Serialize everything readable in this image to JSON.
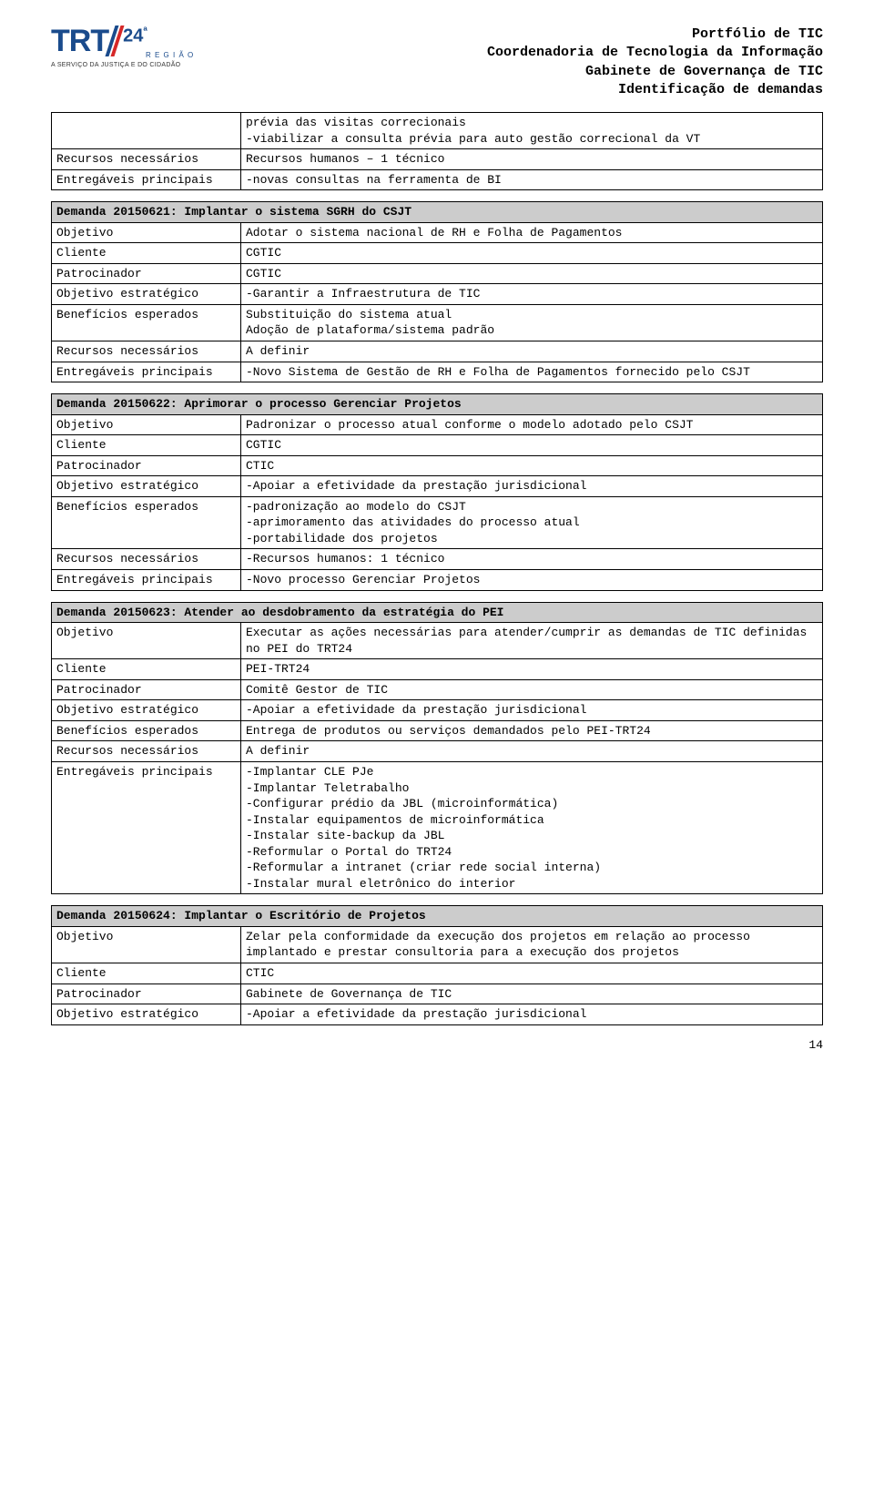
{
  "header": {
    "line1": "Portfólio de TIC",
    "line2": "Coordenadoria de Tecnologia da Informação",
    "line3": "Gabinete de Governança de TIC",
    "line4": "Identificação de demandas"
  },
  "logo": {
    "trt": "TRT",
    "twentyfour": "24",
    "ordinal": "ª",
    "region": "R E G I Ã O",
    "tagline": "A SERVIÇO DA JUSTIÇA E DO CIDADÃO"
  },
  "topTable": {
    "rows": [
      {
        "label": "",
        "value": "prévia das visitas correcionais\n-viabilizar a consulta prévia para auto gestão correcional da VT"
      },
      {
        "label": "Recursos necessários",
        "value": "Recursos humanos – 1 técnico"
      },
      {
        "label": "Entregáveis principais",
        "value": "-novas consultas na ferramenta de BI"
      }
    ]
  },
  "d1": {
    "title": "Demanda 20150621: Implantar o sistema SGRH do CSJT",
    "rows": [
      {
        "label": "Objetivo",
        "value": "Adotar o sistema nacional de RH e Folha de Pagamentos"
      },
      {
        "label": "Cliente",
        "value": "CGTIC"
      },
      {
        "label": "Patrocinador",
        "value": "CGTIC"
      },
      {
        "label": "Objetivo estratégico",
        "value": "-Garantir a Infraestrutura de TIC"
      },
      {
        "label": "Benefícios esperados",
        "value": "Substituição do sistema atual\nAdoção de plataforma/sistema padrão"
      },
      {
        "label": "Recursos necessários",
        "value": "A definir"
      },
      {
        "label": "Entregáveis principais",
        "value": "-Novo Sistema de Gestão de RH e Folha de Pagamentos fornecido pelo CSJT"
      }
    ]
  },
  "d2": {
    "title": "Demanda 20150622: Aprimorar o processo Gerenciar Projetos",
    "rows": [
      {
        "label": "Objetivo",
        "value": "Padronizar o processo atual conforme o modelo adotado pelo CSJT"
      },
      {
        "label": "Cliente",
        "value": "CGTIC"
      },
      {
        "label": "Patrocinador",
        "value": "CTIC"
      },
      {
        "label": "Objetivo estratégico",
        "value": "-Apoiar a efetividade da prestação jurisdicional"
      },
      {
        "label": "Benefícios esperados",
        "value": "-padronização ao modelo do CSJT\n-aprimoramento das atividades do processo atual\n-portabilidade dos projetos"
      },
      {
        "label": "Recursos necessários",
        "value": "-Recursos humanos: 1 técnico"
      },
      {
        "label": "Entregáveis principais",
        "value": "-Novo processo Gerenciar Projetos"
      }
    ]
  },
  "d3": {
    "title": "Demanda 20150623: Atender ao desdobramento da estratégia do PEI",
    "rows": [
      {
        "label": "Objetivo",
        "value": "Executar as ações necessárias para atender/cumprir as demandas de TIC definidas no PEI do TRT24"
      },
      {
        "label": "Cliente",
        "value": "PEI-TRT24"
      },
      {
        "label": "Patrocinador",
        "value": "Comitê Gestor de TIC"
      },
      {
        "label": "Objetivo estratégico",
        "value": "-Apoiar a efetividade da prestação jurisdicional"
      },
      {
        "label": "Benefícios esperados",
        "value": "Entrega de produtos ou serviços demandados pelo PEI-TRT24"
      },
      {
        "label": "Recursos necessários",
        "value": "A definir"
      },
      {
        "label": "Entregáveis principais",
        "value": "-Implantar CLE PJe\n-Implantar Teletrabalho\n-Configurar prédio da JBL (microinformática)\n-Instalar equipamentos de microinformática\n-Instalar site-backup da JBL\n-Reformular o Portal do TRT24\n-Reformular a intranet (criar rede social interna)\n-Instalar mural eletrônico do interior"
      }
    ]
  },
  "d4": {
    "title": "Demanda 20150624: Implantar o Escritório de Projetos",
    "rows": [
      {
        "label": "Objetivo",
        "value": "Zelar pela conformidade da execução dos projetos em relação ao processo implantado e prestar consultoria para a execução dos projetos"
      },
      {
        "label": "Cliente",
        "value": "CTIC"
      },
      {
        "label": "Patrocinador",
        "value": "Gabinete de Governança de TIC"
      },
      {
        "label": "Objetivo estratégico",
        "value": "-Apoiar a efetividade da prestação jurisdicional"
      }
    ]
  },
  "pageNumber": "14"
}
